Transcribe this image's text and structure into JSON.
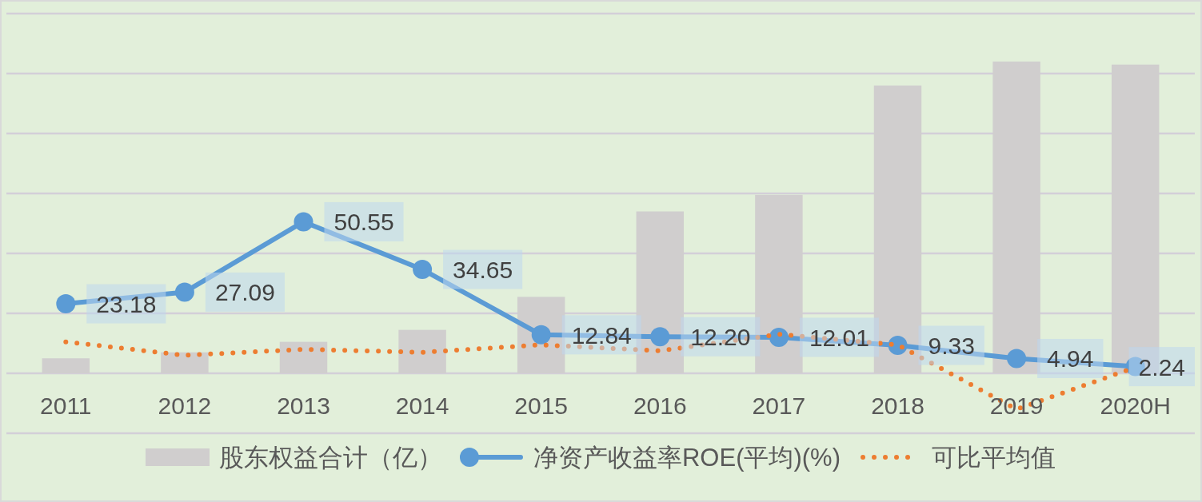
{
  "chart_data": {
    "type": "bar",
    "categories": [
      "2011",
      "2012",
      "2013",
      "2014",
      "2015",
      "2016",
      "2017",
      "2018",
      "2019",
      "2020H"
    ],
    "series": [
      {
        "name": "股东权益合计（亿）",
        "color": "#d0cece",
        "values": [
          5,
          7,
          10.5,
          14.5,
          25.5,
          54,
          59.5,
          96,
          104,
          103
        ]
      },
      {
        "name": "净资产收益率ROE(平均)(%)",
        "type": "line",
        "color": "#5b9bd5",
        "marker": "circle",
        "line_style": "solid",
        "values": [
          23.18,
          27.09,
          50.55,
          34.65,
          12.84,
          12.2,
          12.01,
          9.33,
          4.94,
          2.24
        ],
        "value_labels": [
          "23.18",
          "27.09",
          "50.55",
          "34.65",
          "12.84",
          "12.20",
          "12.01",
          "9.33",
          "4.94",
          "2.24"
        ]
      },
      {
        "name": "可比平均值",
        "type": "line",
        "color": "#ed7d31",
        "marker": "none",
        "line_style": "dotted",
        "values": [
          10.5,
          6,
          8,
          7,
          9.5,
          7.5,
          13,
          9.5,
          -12,
          2
        ]
      }
    ],
    "ylim": [
      -20,
      120
    ],
    "yticks": [
      {
        "value": -20,
        "label": null
      },
      {
        "value": 0,
        "label": null
      },
      {
        "value": 20,
        "label": null
      },
      {
        "value": 40,
        "label": null
      },
      {
        "value": 60,
        "label": null
      },
      {
        "value": 80,
        "label": null
      },
      {
        "value": 100,
        "label": null
      },
      {
        "value": 120,
        "label": null
      }
    ],
    "grid": "y",
    "legend": "bottom",
    "tick_labels": "x"
  }
}
